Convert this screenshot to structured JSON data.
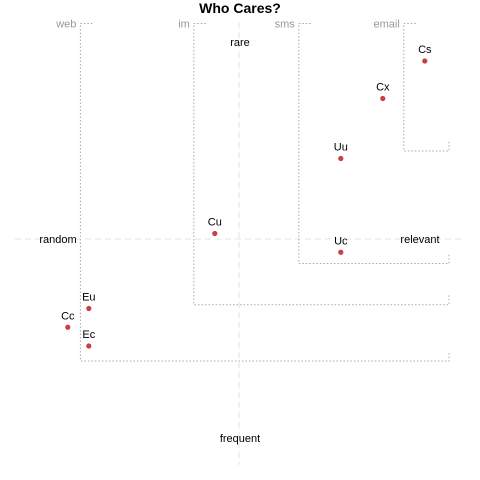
{
  "chart_data": {
    "type": "scatter",
    "title": "Who Cares?",
    "xlim": [
      0,
      10
    ],
    "ylim": [
      0,
      10
    ],
    "grid": false,
    "axis_labels": {
      "left": "random",
      "right": "relevant",
      "top": "rare",
      "bottom": "frequent"
    },
    "points": [
      {
        "label": "Cs",
        "x": 9.4,
        "y": 9.2
      },
      {
        "label": "Cx",
        "x": 8.4,
        "y": 8.2
      },
      {
        "label": "Uu",
        "x": 7.4,
        "y": 6.6
      },
      {
        "label": "Cu",
        "x": 4.4,
        "y": 4.6
      },
      {
        "label": "Uc",
        "x": 7.4,
        "y": 4.1
      },
      {
        "label": "Eu",
        "x": 1.4,
        "y": 2.6
      },
      {
        "label": "Cc",
        "x": 0.9,
        "y": 2.1
      },
      {
        "label": "Ec",
        "x": 1.4,
        "y": 1.6
      }
    ],
    "regions": [
      {
        "label": "web",
        "x_min": 1.2,
        "y_max": 10.2,
        "y_min": 1.2
      },
      {
        "label": "im",
        "x_min": 3.9,
        "y_max": 10.2,
        "y_min": 2.7
      },
      {
        "label": "sms",
        "x_min": 6.4,
        "y_max": 10.2,
        "y_min": 3.8
      },
      {
        "label": "email",
        "x_min": 8.9,
        "y_max": 10.2,
        "y_min": 6.8
      }
    ],
    "colors": {
      "point": "#c8413d",
      "region_border": "#aaaaaa",
      "crosshair": "#e3e3e3",
      "channel_text": "#999999",
      "text": "#000000"
    }
  }
}
